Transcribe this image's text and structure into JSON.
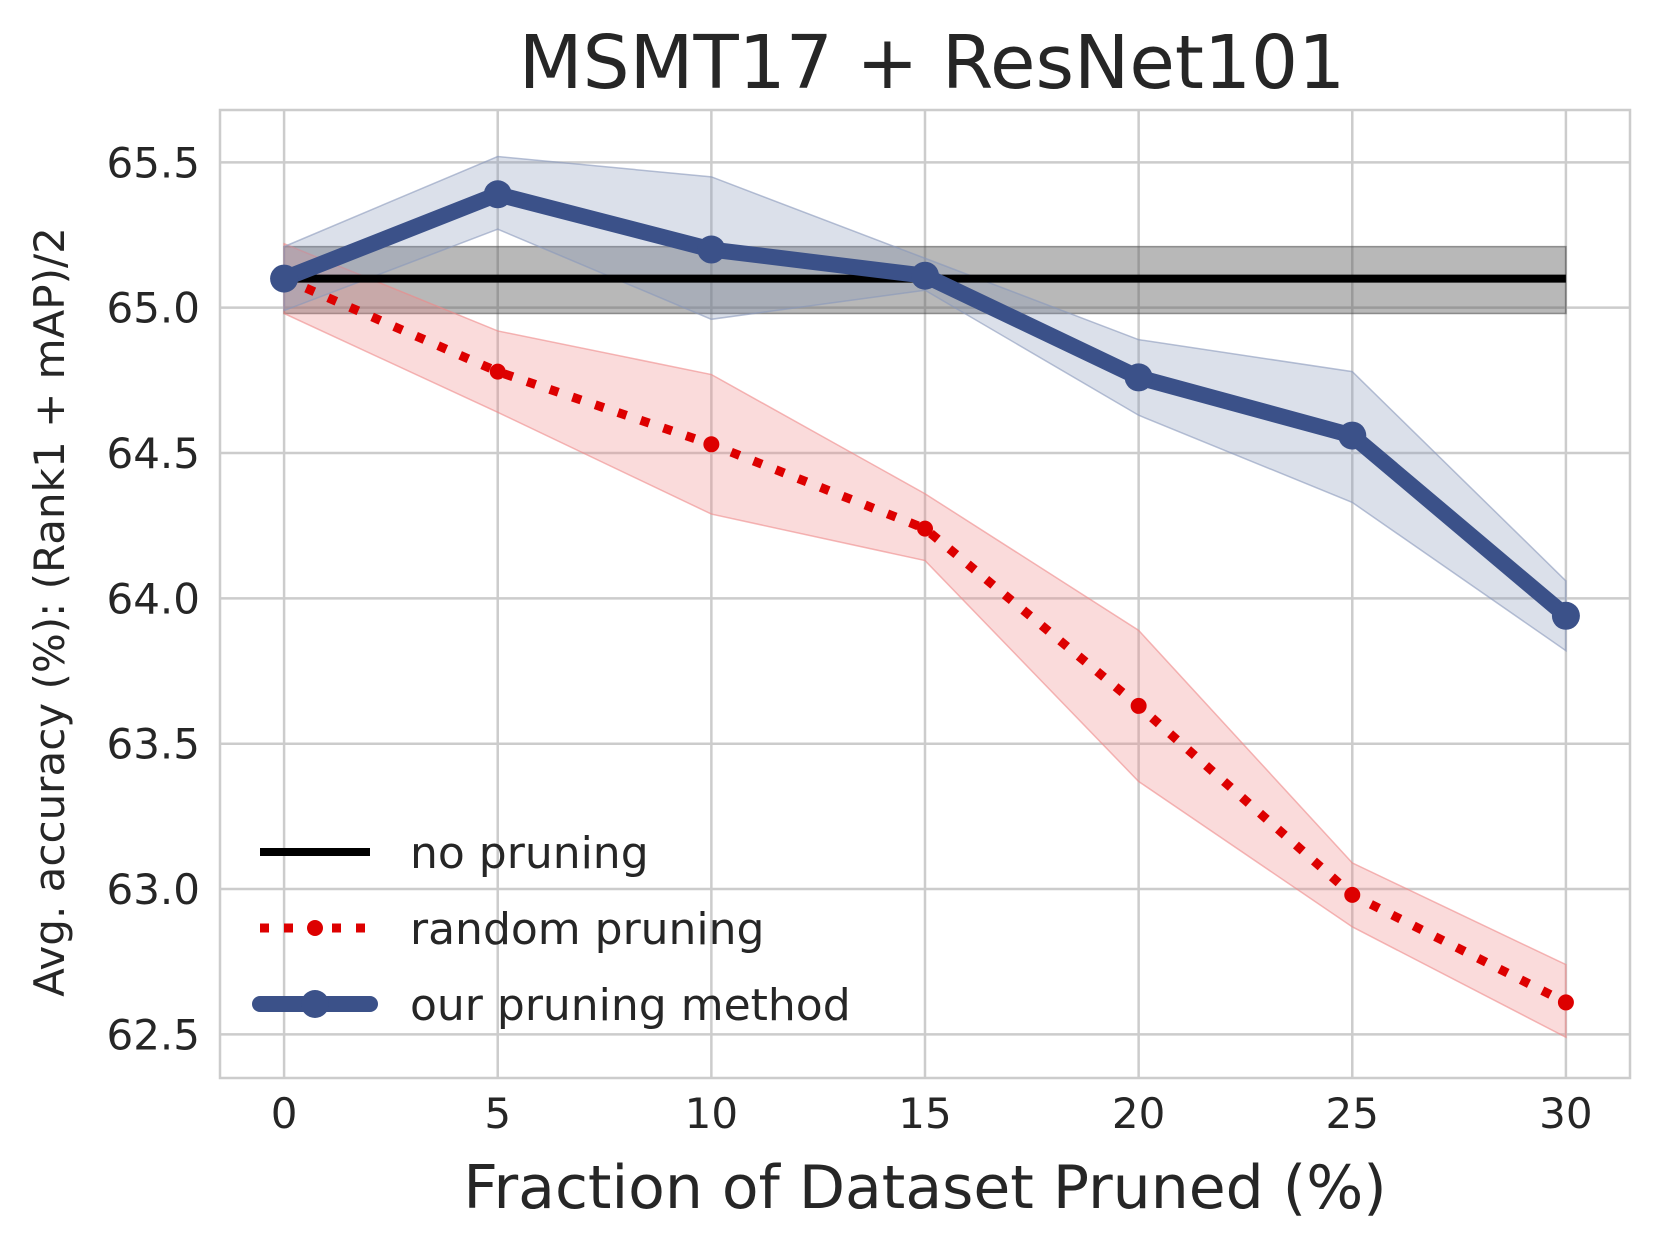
{
  "chart_data": {
    "type": "line",
    "title": "MSMT17 + ResNet101",
    "xlabel": "Fraction of Dataset Pruned (%)",
    "ylabel": "Avg. accuracy (%): (Rank1 + mAP)/2",
    "x": [
      0,
      5,
      10,
      15,
      20,
      25,
      30
    ],
    "xlim": [
      -1.5,
      31.5
    ],
    "ylim": [
      62.35,
      65.68
    ],
    "xticks": [
      "0",
      "5",
      "10",
      "15",
      "20",
      "25",
      "30"
    ],
    "yticks": [
      "62.5",
      "63.0",
      "63.5",
      "64.0",
      "64.5",
      "65.0",
      "65.5"
    ],
    "grid": true,
    "legend_position": "lower-left",
    "series": [
      {
        "name": "no pruning",
        "color": "#000000",
        "style": "solid",
        "markers": false,
        "values": [
          65.1,
          65.1,
          65.1,
          65.1,
          65.1,
          65.1,
          65.1
        ],
        "band_lower": [
          64.98,
          64.98,
          64.98,
          64.98,
          64.98,
          64.98,
          64.98
        ],
        "band_upper": [
          65.21,
          65.21,
          65.21,
          65.21,
          65.21,
          65.21,
          65.21
        ],
        "band_color": "#555555"
      },
      {
        "name": "random pruning",
        "color": "#dd0000",
        "style": "dotted",
        "markers": true,
        "values": [
          65.1,
          64.78,
          64.53,
          64.24,
          63.63,
          62.98,
          62.61
        ],
        "band_lower": [
          64.98,
          64.64,
          64.29,
          64.13,
          63.37,
          62.87,
          62.49
        ],
        "band_upper": [
          65.22,
          64.92,
          64.77,
          64.36,
          63.89,
          63.09,
          62.74
        ],
        "band_color": "#ee8888"
      },
      {
        "name": "our pruning method",
        "color": "#3b5189",
        "style": "solid",
        "markers": true,
        "values": [
          65.1,
          65.39,
          65.2,
          65.11,
          64.76,
          64.56,
          63.94
        ],
        "band_lower": [
          64.99,
          65.27,
          64.96,
          65.06,
          64.63,
          64.33,
          63.82
        ],
        "band_upper": [
          65.21,
          65.52,
          65.45,
          65.17,
          64.89,
          64.78,
          64.06
        ],
        "band_color": "#8898bb"
      }
    ]
  }
}
